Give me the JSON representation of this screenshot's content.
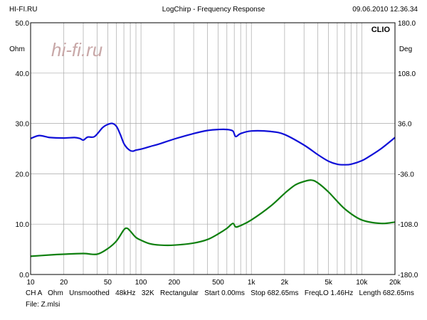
{
  "header": {
    "left": "HI-FI.RU",
    "center": "LogChirp - Frequency Response",
    "right": "09.06.2010 12.36.34"
  },
  "watermark": "hi-fi.ru",
  "brand": "CLIO",
  "footer": {
    "line1": "CH A   Ohm   Unsmoothed   48kHz   32K   Rectangular   Start 0.00ms   Stop 682.65ms   FreqLO 1.46Hz   Length 682.65ms",
    "line2": "File: Z.mlsi"
  },
  "colors": {
    "magnitude": "#1010d8",
    "phase": "#108010",
    "grid": "#a8a8a8",
    "watermark": "#c8a8a8"
  },
  "chart_data": {
    "type": "line",
    "x_scale": "log",
    "xlim": [
      10,
      20000
    ],
    "ylim": [
      0,
      50
    ],
    "y2lim": [
      -180,
      180
    ],
    "ylabel": "Ohm",
    "y2label": "Deg",
    "grid": true,
    "x_ticks": [
      {
        "v": 10,
        "l": "10"
      },
      {
        "v": 20,
        "l": "20"
      },
      {
        "v": 50,
        "l": "50"
      },
      {
        "v": 100,
        "l": "100"
      },
      {
        "v": 200,
        "l": "200"
      },
      {
        "v": 500,
        "l": "500"
      },
      {
        "v": 1000,
        "l": "1k"
      },
      {
        "v": 2000,
        "l": "2k"
      },
      {
        "v": 5000,
        "l": "5k"
      },
      {
        "v": 10000,
        "l": "10k"
      },
      {
        "v": 20000,
        "l": "20k"
      }
    ],
    "y_ticks": [
      "0.0",
      "10.0",
      "20.0",
      "30.0",
      "40.0",
      "50.0"
    ],
    "y2_ticks": [
      "-180.0",
      "-108.0",
      "-36.0",
      "36.0",
      "108.0",
      "180.0"
    ],
    "series": [
      {
        "axis": "left",
        "x": [
          10,
          12,
          15,
          20,
          25,
          28,
          30,
          33,
          38,
          45,
          50,
          55,
          60,
          65,
          70,
          75,
          80,
          85,
          90,
          100,
          120,
          150,
          200,
          300,
          400,
          500,
          600,
          680,
          720,
          800,
          1000,
          1500,
          2000,
          3000,
          4000,
          5000,
          6000,
          7000,
          8000,
          10000,
          12000,
          15000,
          20000
        ],
        "values": [
          27.0,
          27.6,
          27.2,
          27.1,
          27.2,
          27.0,
          26.7,
          27.3,
          27.4,
          29.2,
          29.8,
          30.0,
          29.4,
          27.8,
          26.0,
          25.1,
          24.6,
          24.5,
          24.7,
          24.9,
          25.4,
          26.0,
          26.9,
          28.0,
          28.6,
          28.8,
          28.8,
          28.5,
          27.4,
          28.0,
          28.5,
          28.4,
          27.8,
          25.7,
          23.8,
          22.5,
          21.9,
          21.8,
          21.9,
          22.6,
          23.6,
          25.0,
          27.2
        ]
      },
      {
        "axis": "right",
        "x": [
          10,
          15,
          20,
          30,
          40,
          50,
          60,
          70,
          75,
          80,
          90,
          100,
          120,
          150,
          200,
          300,
          400,
          500,
          600,
          680,
          720,
          800,
          1000,
          1500,
          2000,
          2500,
          3000,
          3500,
          4000,
          5000,
          7000,
          10000,
          15000,
          20000
        ],
        "values": [
          -154,
          -152,
          -151,
          -150,
          -151,
          -143,
          -132,
          -116,
          -114,
          -118,
          -127,
          -131,
          -136,
          -138,
          -138,
          -135,
          -130,
          -122,
          -114,
          -107,
          -112,
          -110,
          -102,
          -82,
          -64,
          -52,
          -47,
          -45,
          -49,
          -62,
          -86,
          -102,
          -107,
          -105
        ]
      }
    ]
  }
}
